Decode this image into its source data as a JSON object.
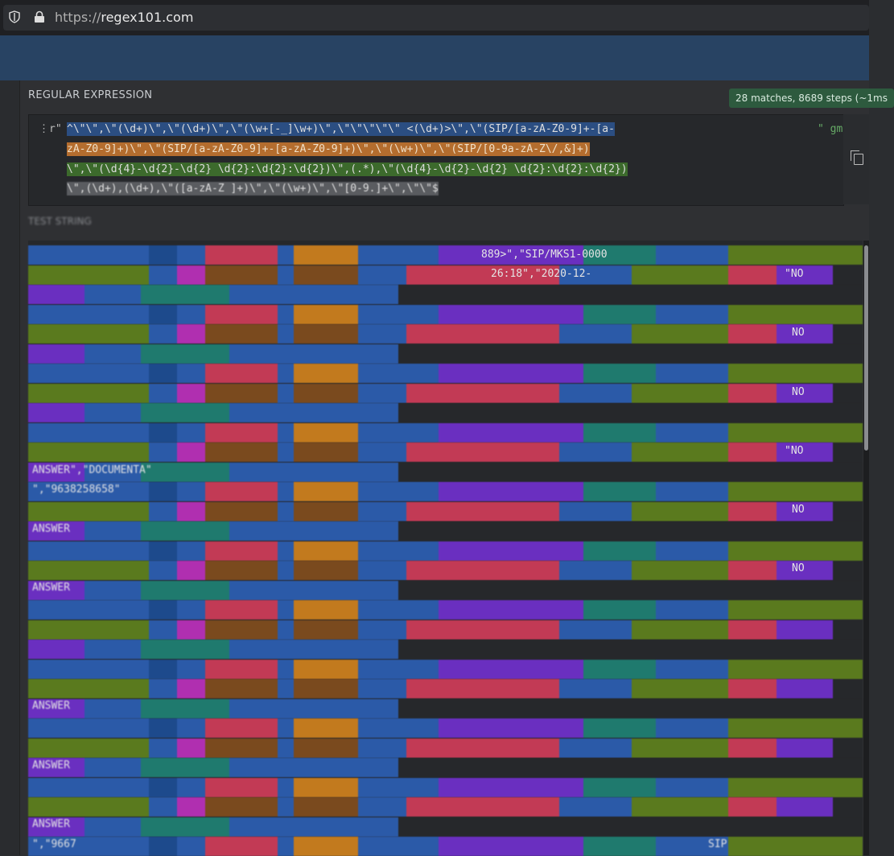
{
  "browser": {
    "url_prefix": "https://",
    "url_host": "regex101.com"
  },
  "regex": {
    "section_label": "REGULAR EXPRESSION",
    "match_badge": "28 matches, 8689 steps (~1ms",
    "delimiter_open": "⋮r\"",
    "flags": "\" gm",
    "line1": "^\\\"\\\",\\\"(\\d+)\\\",\\\"(\\d+)\\\",\\\"(\\w+[-_]\\w+)\\\",\\\"\\\"\\\"\\\"\\\" <(\\d+)>\\\",\\\"(SIP/[a-zA-Z0-9]+-[a-",
    "line2": "zA-Z0-9]+)\\\",\\\"(SIP/[a-zA-Z0-9]+-[a-zA-Z0-9]+)\\\",\\\"(\\w+)\\\",\\\"(SIP/[0-9a-zA-Z\\/,&]+)",
    "line3": "\\\",\\\"(\\d{4}-\\d{2}-\\d{2} \\d{2}:\\d{2}:\\d{2})\\\",(.*),\\\"(\\d{4}-\\d{2}-\\d{2} \\d{2}:\\d{2}:\\d{2})",
    "line4": "\\\",(\\d+),(\\d+),\\\"([a-zA-Z ]+)\\\",\\\"(\\w+)\\\",\\\"[0-9.]+\\\",\\\"\\\"$"
  },
  "test_string": {
    "section_label": "TEST STRING",
    "fragments": {
      "r1": "889>\",\"SIP/MKS1-0000",
      "r2": "26:18\",\"2020-12-",
      "r2_end": "\"NO",
      "r5_end": "NO",
      "r8_end": "NO",
      "r11_end": "\"NO",
      "r12": "ANSWER\",\"DOCUMENTA\"",
      "r13": "\",\"9638258658\"",
      "r14_end": "NO",
      "r15": "ANSWER",
      "r17_end": "NO",
      "r18": "ANSWER",
      "r23": "ANSWER",
      "r26": "ANSWER",
      "r29": "ANSWER",
      "r31": "\",\"9667",
      "r31_end": "SIP"
    }
  },
  "colors": {
    "green": "#5a7a1e",
    "blue": "#2b5aa8",
    "red": "#c23a55",
    "orange": "#c27a1e",
    "purple": "#6a2fc0",
    "teal": "#1f7a6e",
    "magenta": "#b02fb0"
  }
}
